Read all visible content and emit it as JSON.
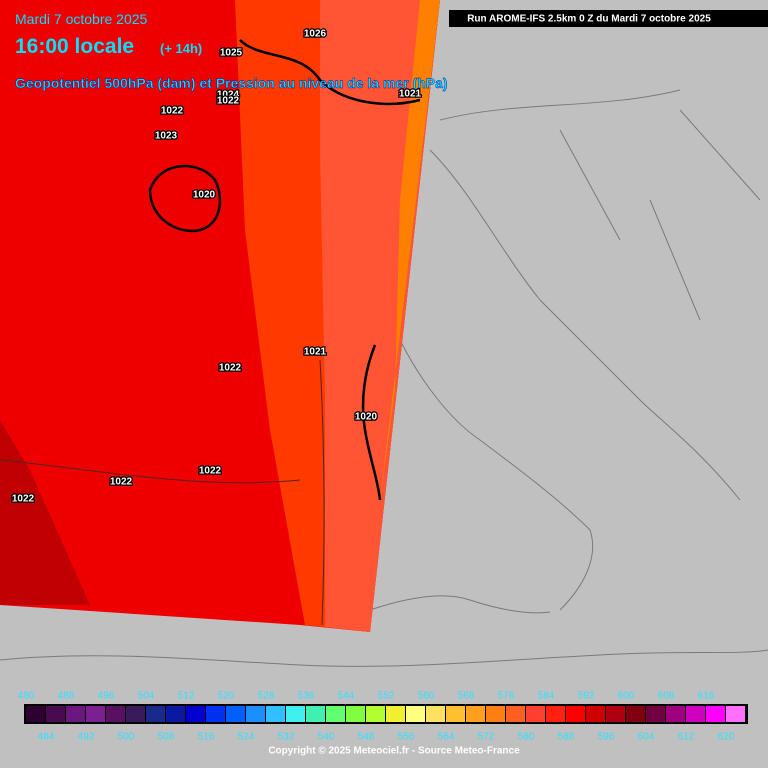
{
  "header": {
    "date": "Mardi 7 octobre 2025",
    "time": "16:00 locale",
    "lead": "(+ 14h)",
    "title": "Geopotentiel 500hPa (dam) et Pression au niveau de la mer (hPa)"
  },
  "run_label": "Run AROME-IFS 2.5km 0 Z du Mardi 7 octobre 2025",
  "pressure_labels": [
    "1026",
    "1025",
    "1022",
    "1024",
    "1023",
    "1021",
    "1020",
    "1021",
    "1022",
    "1020",
    "1022",
    "1022",
    "1022",
    "1022"
  ],
  "scale": {
    "values": [
      480,
      484,
      488,
      492,
      496,
      500,
      504,
      508,
      512,
      516,
      520,
      524,
      528,
      532,
      536,
      540,
      544,
      548,
      552,
      556,
      560,
      564,
      568,
      572,
      576,
      580,
      584,
      588,
      592,
      596,
      600,
      604,
      608,
      612,
      616,
      620
    ],
    "colors": [
      "#2d0030",
      "#4a0a50",
      "#6a1880",
      "#7a2090",
      "#5a1060",
      "#3a1a5a",
      "#1a2a8a",
      "#0a1aa0",
      "#0000d0",
      "#0030f0",
      "#0060ff",
      "#1a90ff",
      "#30c0ff",
      "#40f0f0",
      "#40f0b0",
      "#60ff70",
      "#80ff40",
      "#b0ff30",
      "#f0f030",
      "#ffff80",
      "#ffe060",
      "#ffc030",
      "#ffa020",
      "#ff8010",
      "#ff6020",
      "#ff4030",
      "#ff2010",
      "#ff0000",
      "#d00000",
      "#b00010",
      "#800010",
      "#700040",
      "#a00080",
      "#d000c0",
      "#ff00ff",
      "#ff70ff"
    ]
  },
  "copyright": "Copyright © 2025 Meteociel.fr - Source Meteo-France"
}
